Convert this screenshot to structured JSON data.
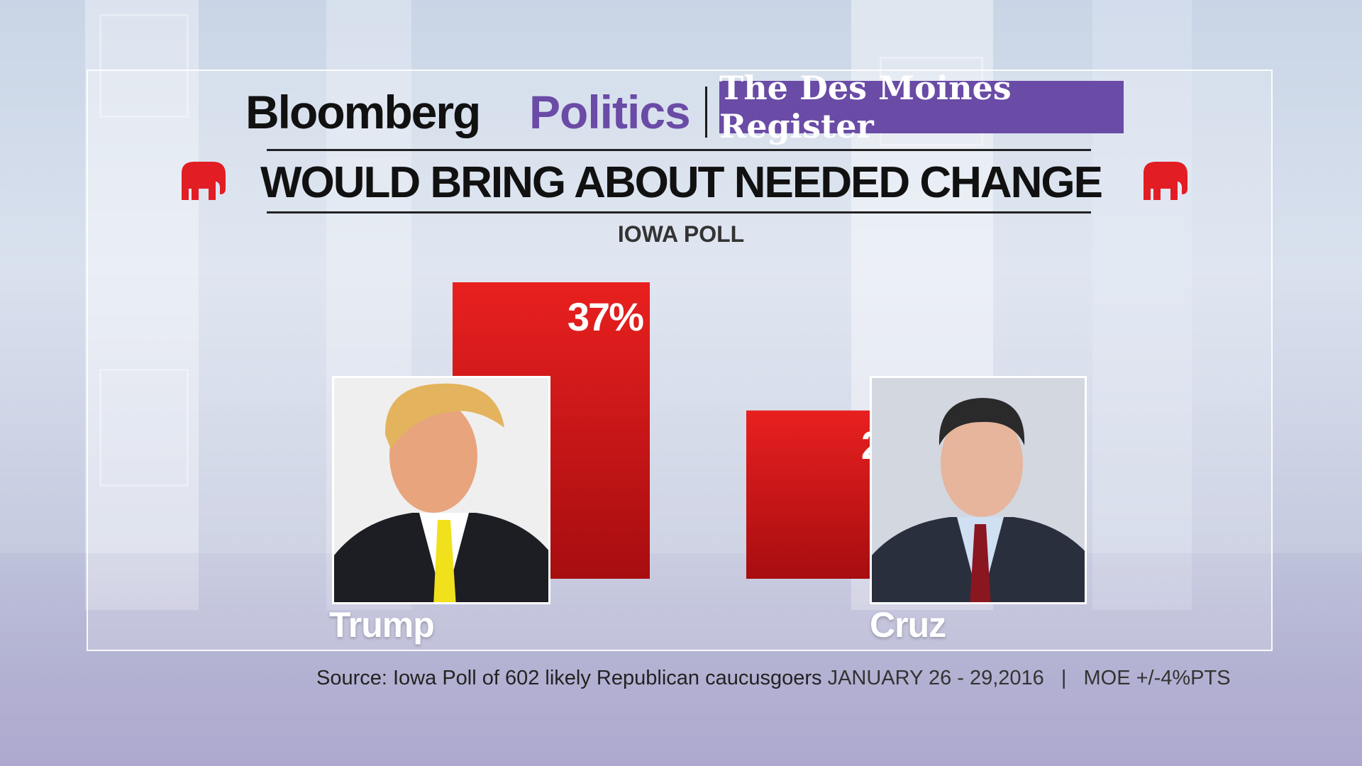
{
  "header": {
    "brand_bloomberg": "Bloomberg",
    "brand_politics": "Politics",
    "brand_register": "The Des Moines Register"
  },
  "colors": {
    "bar_red": "#d9191c",
    "politics_purple": "#6a4ba6",
    "elephant_red": "#e21d24"
  },
  "icons": {
    "left": "elephant-icon",
    "right": "elephant-icon"
  },
  "chart_data": {
    "type": "bar",
    "title": "WOULD BRING ABOUT NEEDED CHANGE",
    "subtitle": "IOWA POLL",
    "categories": [
      "Trump",
      "Cruz"
    ],
    "values": [
      37,
      21
    ],
    "value_labels": [
      "37%",
      "21%"
    ],
    "ylim": [
      0,
      37
    ],
    "grid": false,
    "legend": "none"
  },
  "footer": {
    "source": "Source: Iowa Poll of 602 likely Republican caucusgoers",
    "dates": "JANUARY 26 - 29,2016",
    "separator": "|",
    "moe": "MOE +/-4%PTS"
  }
}
